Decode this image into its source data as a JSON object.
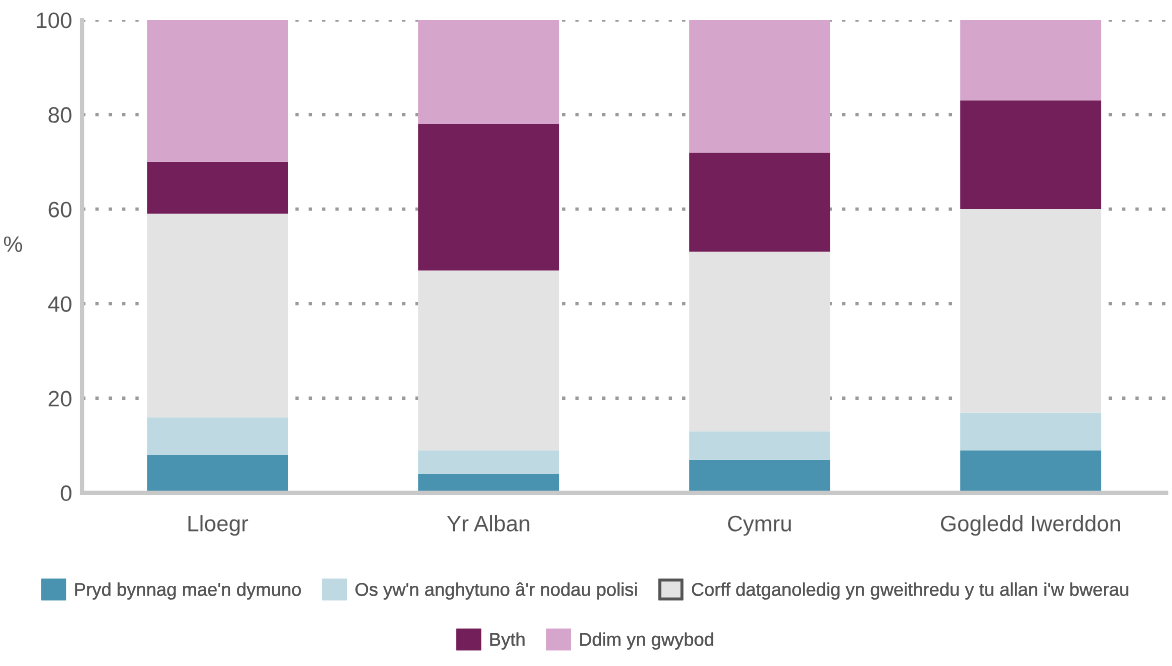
{
  "chart_data": {
    "type": "bar",
    "stacked": true,
    "ylabel": "%",
    "categories": [
      "Lloegr",
      "Yr Alban",
      "Cymru",
      "Gogledd Iwerddon"
    ],
    "series": [
      {
        "name": "Pryd bynnag mae'n dymuno",
        "color": "#4a93b0",
        "values": [
          8,
          4,
          7,
          9
        ]
      },
      {
        "name": "Os yw'n anghytuno â'r nodau polisi",
        "color": "#bed9e2",
        "values": [
          8,
          5,
          6,
          8
        ]
      },
      {
        "name": "Corff datganoledig yn gweithredu y tu allan i'w bwerau",
        "color": "#e3e3e3",
        "values": [
          43,
          38,
          38,
          43
        ]
      },
      {
        "name": "Byth",
        "color": "#731f5a",
        "values": [
          11,
          31,
          21,
          23
        ]
      },
      {
        "name": "Ddim yn gwybod",
        "color": "#d5a5cc",
        "values": [
          30,
          22,
          28,
          17
        ]
      }
    ],
    "ylim": [
      0,
      100
    ],
    "yticks": [
      0,
      20,
      40,
      60,
      80,
      100
    ],
    "grid": "y",
    "legend": "bottom"
  }
}
